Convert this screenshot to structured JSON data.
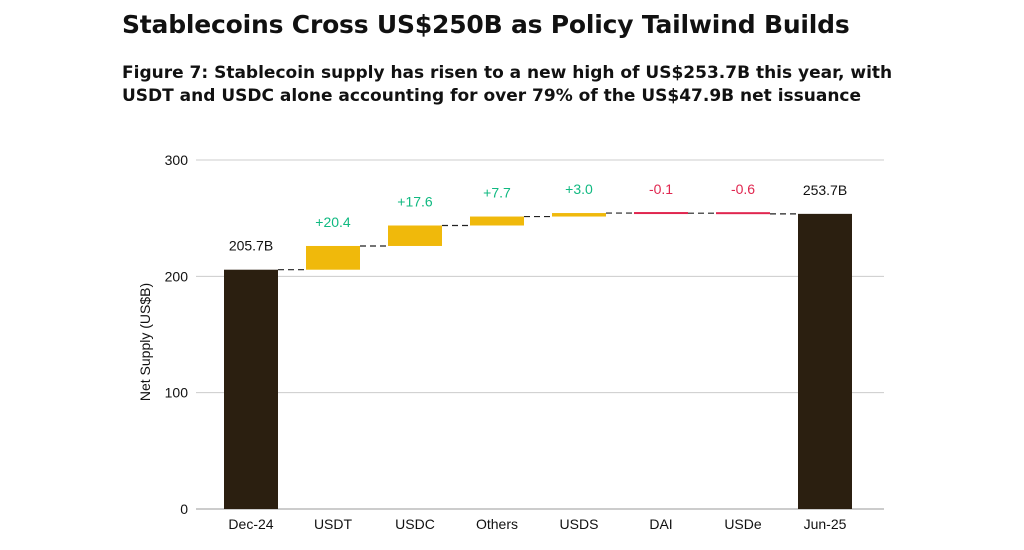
{
  "header": {
    "title": "Stablecoins Cross US$250B as Policy Tailwind Builds",
    "subtitle": "Figure 7: Stablecoin supply has risen to a new high of US$253.7B this year, with USDT and USDC alone accounting for over 79% of the US$47.9B net issuance"
  },
  "colors": {
    "total_bar": "#2b1f10",
    "increase_bar": "#f0b90b",
    "decrease_bar": "#e0264f",
    "increase_label": "#10b981",
    "decrease_label": "#e0264f",
    "gridline": "#cccccc",
    "connector": "#222222"
  },
  "chart_data": {
    "type": "bar",
    "subtype": "waterfall",
    "title": "",
    "xlabel": "",
    "ylabel": "Net Supply (US$B)",
    "ylim": [
      0,
      300
    ],
    "yticks": [
      0,
      100,
      200,
      300
    ],
    "grid": true,
    "categories": [
      "Dec-24",
      "USDT",
      "USDC",
      "Others",
      "USDS",
      "DAI",
      "USDe",
      "Jun-25"
    ],
    "steps": [
      {
        "category": "Dec-24",
        "kind": "total",
        "value": 205.7,
        "label": "205.7B"
      },
      {
        "category": "USDT",
        "kind": "delta",
        "value": 20.4,
        "label": "+20.4"
      },
      {
        "category": "USDC",
        "kind": "delta",
        "value": 17.6,
        "label": "+17.6"
      },
      {
        "category": "Others",
        "kind": "delta",
        "value": 7.7,
        "label": "+7.7"
      },
      {
        "category": "USDS",
        "kind": "delta",
        "value": 3.0,
        "label": "+3.0"
      },
      {
        "category": "DAI",
        "kind": "delta",
        "value": -0.1,
        "label": "-0.1"
      },
      {
        "category": "USDe",
        "kind": "delta",
        "value": -0.6,
        "label": "-0.6"
      },
      {
        "category": "Jun-25",
        "kind": "total",
        "value": 253.7,
        "label": "253.7B"
      }
    ]
  }
}
